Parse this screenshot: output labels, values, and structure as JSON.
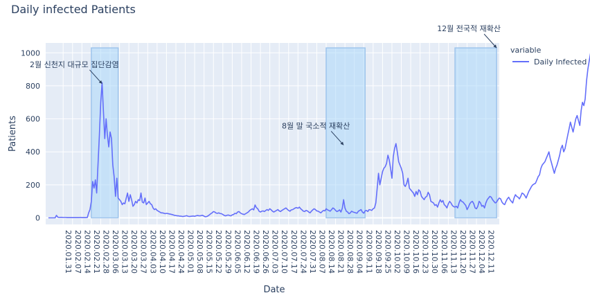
{
  "chart_data": {
    "type": "line",
    "title": "Daily infected Patients",
    "xlabel": "Date",
    "ylabel": "Patients",
    "x_start": "2020.01.20",
    "x_end": "2020.12.19",
    "xlim": [
      "2020.01.18",
      "2020.12.21"
    ],
    "ylim": [
      -40,
      1060
    ],
    "y_ticks": [
      0,
      200,
      400,
      600,
      800,
      1000
    ],
    "x_tick_labels": [
      "2020.01.31",
      "2020.02.07",
      "2020.02.14",
      "2020.02.21",
      "2020.02.28",
      "2020.03.06",
      "2020.03.13",
      "2020.03.20",
      "2020.03.27",
      "2020.04.03",
      "2020.04.10",
      "2020.04.17",
      "2020.04.24",
      "2020.05.01",
      "2020.05.08",
      "2020.05.15",
      "2020.05.22",
      "2020.05.29",
      "2020.06.05",
      "2020.06.12",
      "2020.06.19",
      "2020.06.26",
      "2020.07.03",
      "2020.07.10",
      "2020.07.17",
      "2020.07.24",
      "2020.07.31",
      "2020.08.07",
      "2020.08.14",
      "2020.08.21",
      "2020.08.28",
      "2020.09.04",
      "2020.09.11",
      "2020.09.18",
      "2020.09.25",
      "2020.10.02",
      "2020.10.09",
      "2020.10.16",
      "2020.10.23",
      "2020.10.30",
      "2020.11.06",
      "2020.11.13",
      "2020.11.20",
      "2020.11.27",
      "2020.12.04",
      "2020.12.11"
    ],
    "x_tick_step_days": 7,
    "grid": true,
    "legend": {
      "title": "variable",
      "position": "right"
    },
    "series": [
      {
        "name": "Daily Infected",
        "color": "#636efa",
        "values": [
          0,
          0,
          0,
          0,
          0,
          0,
          15,
          4,
          2,
          3,
          3,
          2,
          2,
          2,
          1,
          1,
          1,
          1,
          1,
          1,
          1,
          1,
          1,
          1,
          2,
          1,
          1,
          1,
          1,
          2,
          30,
          50,
          100,
          220,
          180,
          230,
          150,
          330,
          500,
          700,
          820,
          650,
          480,
          600,
          500,
          430,
          520,
          480,
          320,
          250,
          130,
          240,
          120,
          110,
          100,
          80,
          90,
          85,
          120,
          150,
          100,
          140,
          110,
          70,
          80,
          100,
          90,
          110,
          105,
          150,
          95,
          90,
          120,
          80,
          90,
          100,
          85,
          80,
          60,
          50,
          55,
          45,
          40,
          35,
          30,
          30,
          28,
          25,
          27,
          26,
          24,
          22,
          20,
          18,
          15,
          14,
          12,
          12,
          10,
          10,
          8,
          9,
          11,
          13,
          10,
          8,
          9,
          10,
          11,
          9,
          12,
          14,
          13,
          12,
          14,
          15,
          10,
          6,
          8,
          12,
          18,
          25,
          30,
          38,
          35,
          29,
          27,
          30,
          26,
          25,
          20,
          15,
          12,
          15,
          17,
          14,
          12,
          18,
          20,
          27,
          25,
          35,
          38,
          30,
          25,
          22,
          20,
          25,
          30,
          35,
          45,
          50,
          55,
          48,
          78,
          62,
          55,
          40,
          35,
          40,
          42,
          38,
          45,
          50,
          45,
          55,
          48,
          40,
          35,
          40,
          45,
          50,
          42,
          38,
          45,
          50,
          55,
          60,
          52,
          45,
          40,
          48,
          50,
          55,
          60,
          62,
          58,
          65,
          55,
          48,
          40,
          38,
          45,
          42,
          35,
          30,
          40,
          48,
          55,
          50,
          42,
          40,
          35,
          30,
          38,
          45,
          42,
          55,
          48,
          45,
          40,
          50,
          60,
          55,
          45,
          38,
          42,
          48,
          35,
          58,
          110,
          60,
          40,
          35,
          25,
          30,
          40,
          35,
          33,
          30,
          28,
          40,
          45,
          50,
          35,
          28,
          42,
          45,
          38,
          50,
          48,
          45,
          55,
          60,
          90,
          180,
          270,
          200,
          240,
          280,
          300,
          310,
          330,
          380,
          350,
          300,
          240,
          370,
          420,
          450,
          400,
          340,
          320,
          300,
          270,
          200,
          190,
          210,
          240,
          180,
          170,
          160,
          150,
          130,
          160,
          140,
          170,
          160,
          130,
          120,
          110,
          125,
          130,
          155,
          140,
          100,
          95,
          90,
          75,
          80,
          65,
          90,
          110,
          95,
          105,
          80,
          72,
          60,
          85,
          100,
          90,
          75,
          68,
          65,
          70,
          60,
          90,
          110,
          100,
          95,
          85,
          75,
          50,
          65,
          85,
          95,
          100,
          85,
          60,
          55,
          70,
          100,
          90,
          70,
          75,
          60,
          90,
          110,
          120,
          130,
          125,
          110,
          100,
          90,
          95,
          110,
          120,
          115,
          95,
          85,
          80,
          100,
          115,
          125,
          110,
          100,
          90,
          120,
          140,
          130,
          125,
          115,
          130,
          150,
          145,
          135,
          120,
          140,
          160,
          175,
          190,
          200,
          205,
          210,
          230,
          250,
          260,
          300,
          320,
          330,
          340,
          360,
          380,
          400,
          360,
          330,
          300,
          270,
          300,
          320,
          350,
          380,
          420,
          440,
          400,
          420,
          460,
          500,
          540,
          580,
          550,
          520,
          560,
          600,
          620,
          590,
          560,
          650,
          700,
          680,
          720,
          830,
          900,
          950,
          1000,
          1030
        ],
        "plotted_every_nth_day": 1
      }
    ],
    "highlight_periods": [
      {
        "start": "2020.02.21",
        "end": "2020.03.12"
      },
      {
        "start": "2020.08.14",
        "end": "2020.09.12"
      },
      {
        "start": "2020.11.18",
        "end": "2020.12.19"
      }
    ],
    "annotations": [
      {
        "text": "2월 신천지 대규모 집단감염",
        "x": "2020.02.29",
        "y": 813
      },
      {
        "text": "8월 말 국소적 재확산",
        "x": "2020.08.27",
        "y": 441
      },
      {
        "text": "12월 전국적 재확산",
        "x": "2020.12.19",
        "y": 1030
      }
    ]
  }
}
